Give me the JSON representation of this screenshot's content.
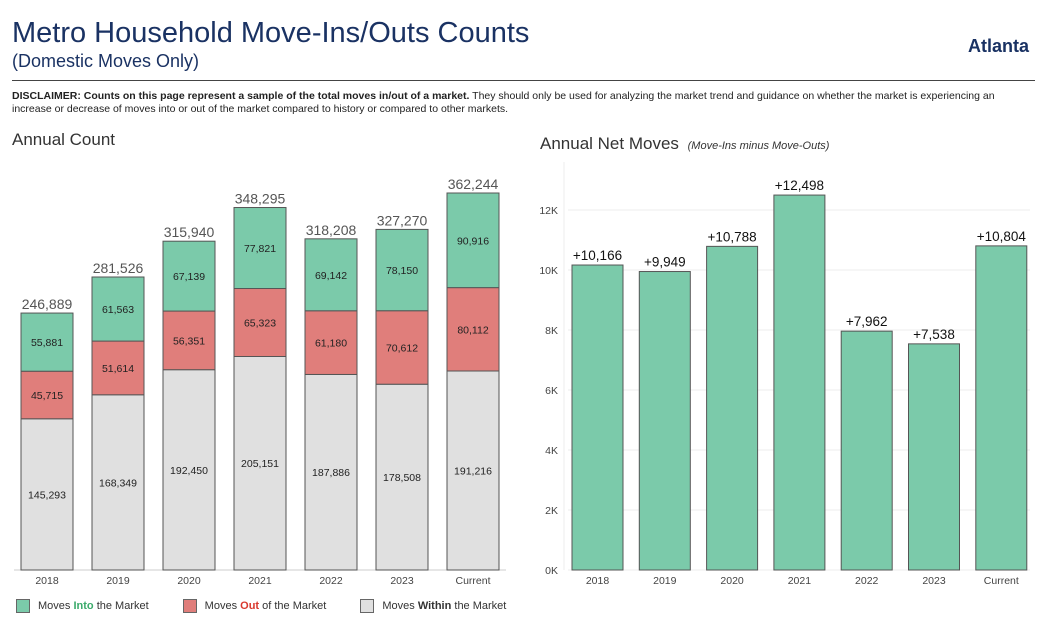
{
  "header": {
    "title": "Metro Household Move-Ins/Outs Counts",
    "subtitle": "(Domestic Moves Only)",
    "market": "Atlanta"
  },
  "disclaimer": {
    "label": "DISCLAIMER:",
    "bold": "Counts on this page represent a sample of the total moves in/out of a market.",
    "text": "They should only be used for analyzing the market trend and guidance on whether the market is experiencing an increase or decrease of moves into or out of the market compared to history or compared to other markets."
  },
  "legend": {
    "into": {
      "pre": "Moves ",
      "key": "Into",
      "post": " the Market"
    },
    "out": {
      "pre": "Moves ",
      "key": "Out",
      "post": " of the Market"
    },
    "within": {
      "pre": "Moves ",
      "key": "Within",
      "post": " the Market"
    }
  },
  "colors": {
    "into": "#7bcaaa",
    "out": "#e07e7b",
    "within": "#e0e0e0",
    "into_text": "#3aaa6a",
    "out_text": "#d9382e",
    "net": "#7bcaaa"
  },
  "chart_data": [
    {
      "type": "bar",
      "stacked": true,
      "title": "Annual Count",
      "categories": [
        "2018",
        "2019",
        "2020",
        "2021",
        "2022",
        "2023",
        "Current"
      ],
      "series": [
        {
          "name": "Moves Within the Market",
          "values": [
            145293,
            168349,
            192450,
            205151,
            187886,
            178508,
            191216
          ]
        },
        {
          "name": "Moves Out of the Market",
          "values": [
            45715,
            51614,
            56351,
            65323,
            61180,
            70612,
            80112
          ]
        },
        {
          "name": "Moves Into the Market",
          "values": [
            55881,
            61563,
            67139,
            77821,
            69142,
            78150,
            90916
          ]
        }
      ],
      "totals": [
        246889,
        281526,
        315940,
        348295,
        318208,
        327270,
        362244
      ],
      "value_labels": {
        "within": [
          "145,293",
          "168,349",
          "192,450",
          "205,151",
          "187,886",
          "178,508",
          "191,216"
        ],
        "out": [
          "45,715",
          "51,614",
          "56,351",
          "65,323",
          "61,180",
          "70,612",
          "80,112"
        ],
        "into": [
          "55,881",
          "61,563",
          "67,139",
          "77,821",
          "69,142",
          "78,150",
          "90,916"
        ],
        "totals": [
          "246,889",
          "281,526",
          "315,940",
          "348,295",
          "318,208",
          "327,270",
          "362,244"
        ]
      }
    },
    {
      "type": "bar",
      "title": "Annual Net Moves",
      "title_note": "(Move-Ins minus Move-Outs)",
      "categories": [
        "2018",
        "2019",
        "2020",
        "2021",
        "2022",
        "2023",
        "Current"
      ],
      "values": [
        10166,
        9949,
        10788,
        12498,
        7962,
        7538,
        10804
      ],
      "value_labels": [
        "+10,166",
        "+9,949",
        "+10,788",
        "+12,498",
        "+7,962",
        "+7,538",
        "+10,804"
      ],
      "yticks": [
        0,
        2000,
        4000,
        6000,
        8000,
        10000,
        12000
      ],
      "ytick_labels": [
        "0K",
        "2K",
        "4K",
        "6K",
        "8K",
        "10K",
        "12K"
      ],
      "ylim": [
        0,
        13300
      ],
      "grid": true
    }
  ]
}
